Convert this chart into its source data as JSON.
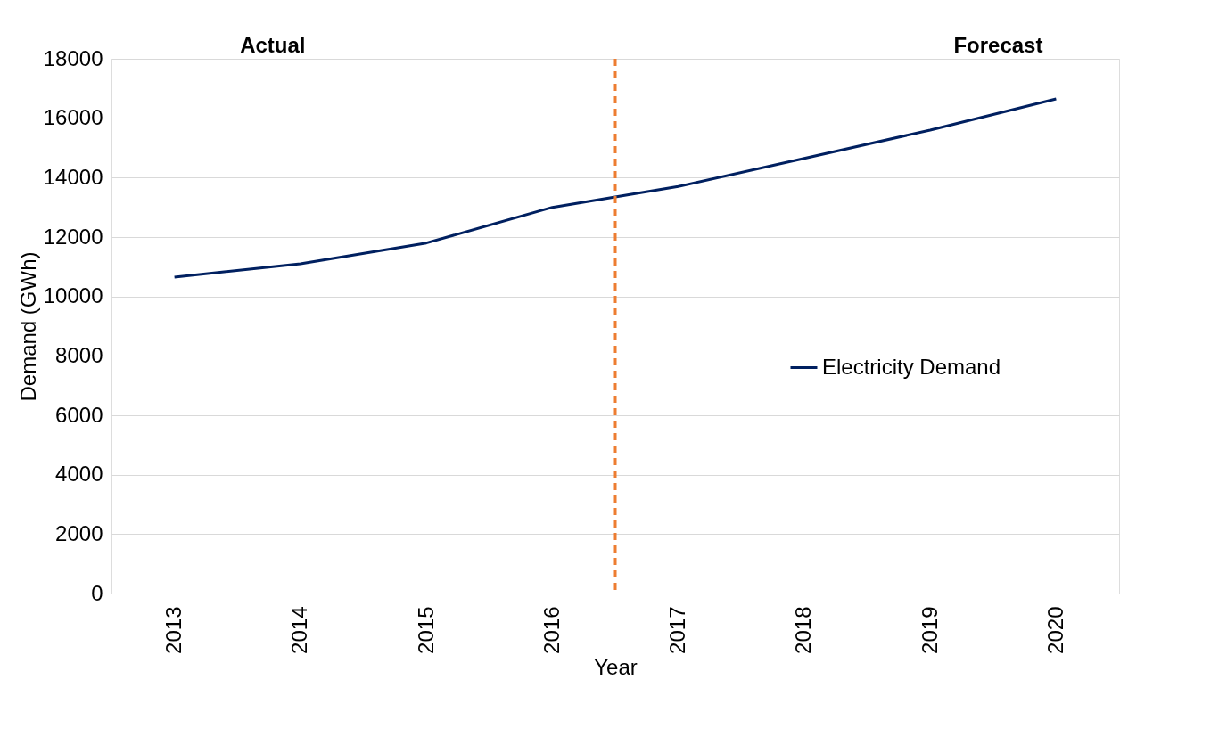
{
  "chart_data": {
    "type": "line",
    "xlabel": "Year",
    "ylabel": "Demand (GWh)",
    "x": [
      2013,
      2014,
      2015,
      2016,
      2017,
      2018,
      2019,
      2020
    ],
    "series": [
      {
        "name": "Electricity Demand",
        "color": "#002060",
        "values": [
          10650,
          11100,
          11800,
          13000,
          13700,
          14650,
          15600,
          16650
        ]
      }
    ],
    "xlim": [
      2012.5,
      2020.5
    ],
    "xticks": [
      2013,
      2014,
      2015,
      2016,
      2017,
      2018,
      2019,
      2020
    ],
    "ylim": [
      0,
      18000
    ],
    "yticks": [
      0,
      2000,
      4000,
      6000,
      8000,
      10000,
      12000,
      14000,
      16000,
      18000
    ],
    "grid": "y",
    "legend": "right",
    "marker": "none",
    "line_style": "solid",
    "ref_lines": [
      {
        "axis": "x",
        "value": 2016.5,
        "color": "#ed7d31",
        "line_style": "dashed"
      }
    ],
    "annotations": [
      "Actual",
      "Forecast"
    ]
  }
}
